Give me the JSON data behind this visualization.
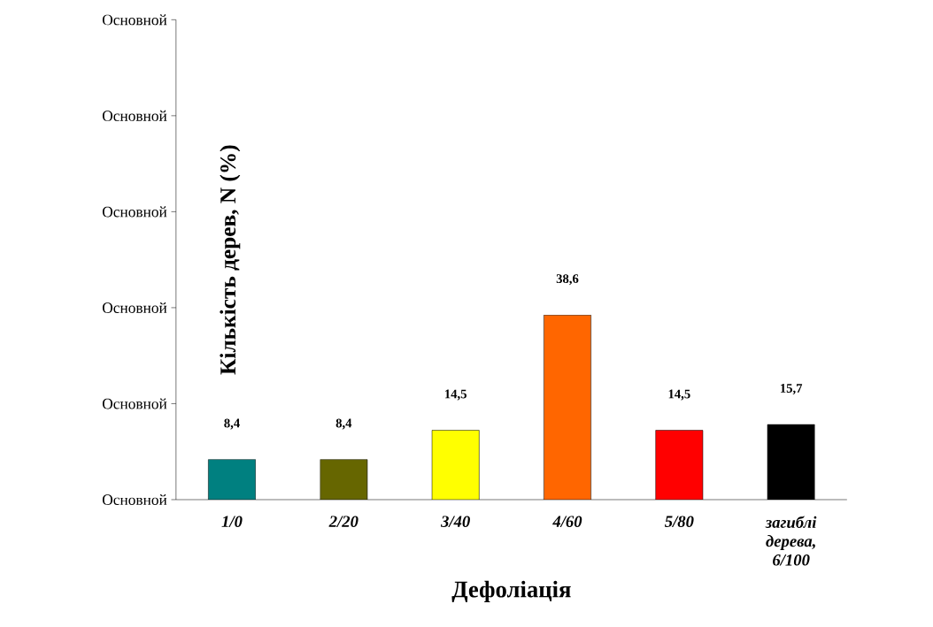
{
  "chart_data": {
    "type": "bar",
    "xlabel": "Дефоліація",
    "ylabel": "Кількість дерев, N (%)",
    "categories": [
      "1/0",
      "2/20",
      "3/40",
      "4/60",
      "5/80",
      "загиблі дерева, 6/100"
    ],
    "values": [
      8.4,
      8.4,
      14.5,
      38.6,
      14.5,
      15.7
    ],
    "value_labels": [
      "8,4",
      "8,4",
      "14,5",
      "38,6",
      "14,5",
      "15,7"
    ],
    "colors": [
      "#008080",
      "#666600",
      "#ffff00",
      "#ff6600",
      "#ff0000",
      "#000000"
    ],
    "data_labels": true,
    "annotations": [
      "Основной",
      "Основной",
      "Основной",
      "Основной",
      "Основной",
      "Основной"
    ]
  }
}
